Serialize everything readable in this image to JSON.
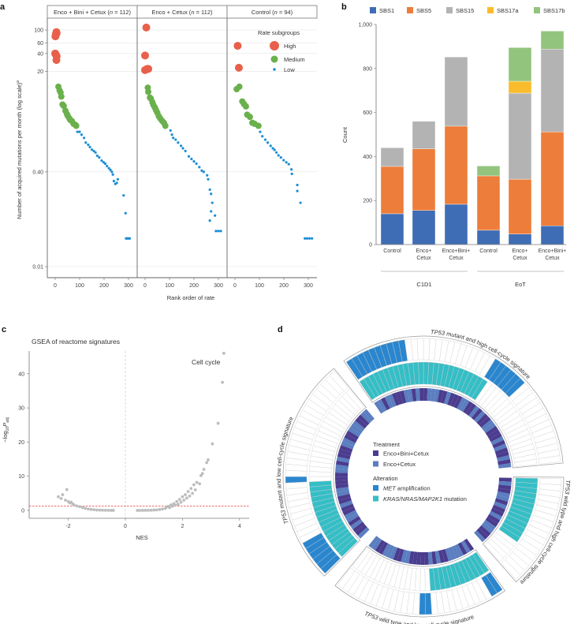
{
  "panel_letters": {
    "a": "a",
    "b": "b",
    "c": "c",
    "d": "d"
  },
  "chart_data": [
    {
      "panel": "a",
      "type": "scatter",
      "ylabel": "Number of acquired mutations per month (log scale)",
      "ylabel_sup": "a",
      "xlabel": "Rank order of rate",
      "yscale": "log",
      "yticks": [
        100,
        60,
        40,
        20,
        0.4,
        0.01
      ],
      "ytick_labels": [
        "100",
        "60",
        "40",
        "20",
        "0.40",
        "0.01"
      ],
      "xticks": [
        0,
        100,
        200,
        300
      ],
      "xtick_labels": [
        "0",
        "100",
        "200",
        "300"
      ],
      "legend": {
        "title": "Rate subgroups",
        "items": [
          "High",
          "Medium",
          "Low"
        ],
        "placement": "top-right"
      },
      "colors": {
        "High": "#E8604C",
        "Medium": "#6AB04C",
        "Low": "#1B8ED6"
      },
      "facets": [
        {
          "title": "Enco + Bini + Cetux (",
          "n_label": "n",
          "n_value": " = 112)",
          "High": [
            [
              1,
              78
            ],
            [
              3,
              85
            ],
            [
              5,
              92
            ],
            [
              6,
              88
            ],
            [
              0,
              40
            ],
            [
              3,
              38
            ],
            [
              6,
              36
            ],
            [
              5,
              31
            ]
          ],
          "Medium": [
            [
              13,
              11
            ],
            [
              18,
              9.5
            ],
            [
              22,
              8.8
            ],
            [
              25,
              7.5
            ],
            [
              30,
              5.5
            ],
            [
              35,
              5.2
            ],
            [
              42,
              4.3
            ],
            [
              48,
              3.8
            ],
            [
              52,
              3.5
            ],
            [
              58,
              3.2
            ],
            [
              62,
              3.0
            ],
            [
              68,
              2.9
            ],
            [
              75,
              2.6
            ],
            [
              82,
              2.5
            ],
            [
              86,
              2.4
            ]
          ],
          "Low": [
            [
              91,
              1.9
            ],
            [
              100,
              1.9
            ],
            [
              108,
              1.7
            ],
            [
              118,
              1.5
            ],
            [
              125,
              1.25
            ],
            [
              135,
              1.15
            ],
            [
              142,
              1.05
            ],
            [
              150,
              0.95
            ],
            [
              158,
              0.9
            ],
            [
              165,
              0.85
            ],
            [
              172,
              0.75
            ],
            [
              180,
              0.7
            ],
            [
              190,
              0.62
            ],
            [
              198,
              0.58
            ],
            [
              205,
              0.55
            ],
            [
              212,
              0.5
            ],
            [
              220,
              0.46
            ],
            [
              226,
              0.43
            ],
            [
              232,
              0.4
            ],
            [
              236,
              0.36
            ],
            [
              240,
              0.28
            ],
            [
              246,
              0.25
            ],
            [
              252,
              0.26
            ],
            [
              256,
              0.3
            ],
            [
              280,
              0.16
            ],
            [
              288,
              0.08
            ],
            [
              290,
              0.03
            ],
            [
              295,
              0.03
            ],
            [
              300,
              0.03
            ],
            [
              305,
              0.03
            ]
          ]
        },
        {
          "title": "Enco + Cetux (",
          "n_label": "n",
          "n_value": " = 112)",
          "High": [
            [
              5,
              110
            ],
            [
              0,
              37
            ],
            [
              0,
              21
            ],
            [
              8,
              22
            ],
            [
              13,
              22
            ]
          ],
          "Medium": [
            [
              11,
              10.6
            ],
            [
              13,
              9
            ],
            [
              20,
              7.2
            ],
            [
              24,
              6.9
            ],
            [
              30,
              6
            ],
            [
              34,
              5.4
            ],
            [
              40,
              4.9
            ],
            [
              45,
              4.4
            ],
            [
              50,
              4
            ],
            [
              56,
              3.5
            ],
            [
              62,
              3.2
            ],
            [
              70,
              2.9
            ],
            [
              77,
              2.7
            ],
            [
              83,
              2.4
            ]
          ],
          "Low": [
            [
              104,
              2.0
            ],
            [
              110,
              1.7
            ],
            [
              115,
              1.5
            ],
            [
              125,
              1.4
            ],
            [
              135,
              1.25
            ],
            [
              147,
              1.1
            ],
            [
              155,
              1.0
            ],
            [
              165,
              0.9
            ],
            [
              179,
              0.73
            ],
            [
              190,
              0.66
            ],
            [
              200,
              0.6
            ],
            [
              210,
              0.55
            ],
            [
              222,
              0.48
            ],
            [
              232,
              0.42
            ],
            [
              240,
              0.4
            ],
            [
              254,
              0.35
            ],
            [
              258,
              0.3
            ],
            [
              265,
              0.2
            ],
            [
              270,
              0.17
            ],
            [
              275,
              0.12
            ],
            [
              270,
              0.086
            ],
            [
              265,
              0.06
            ],
            [
              286,
              0.073
            ],
            [
              290,
              0.04
            ],
            [
              300,
              0.04
            ],
            [
              310,
              0.04
            ]
          ]
        },
        {
          "title": "Control (",
          "n_label": "n",
          "n_value": " = 94)",
          "High": [
            [
              11,
              54
            ],
            [
              16,
              23
            ]
          ],
          "Medium": [
            [
              7,
              10
            ],
            [
              18,
              11
            ],
            [
              30,
              6.2
            ],
            [
              37,
              5.6
            ],
            [
              45,
              5.1
            ],
            [
              50,
              3.7
            ],
            [
              61,
              3.4
            ],
            [
              71,
              2.7
            ],
            [
              80,
              2.6
            ],
            [
              96,
              2.4
            ]
          ],
          "Low": [
            [
              103,
              1.9
            ],
            [
              112,
              1.6
            ],
            [
              124,
              1.4
            ],
            [
              134,
              1.25
            ],
            [
              146,
              1.1
            ],
            [
              155,
              1.0
            ],
            [
              162,
              0.94
            ],
            [
              170,
              0.85
            ],
            [
              178,
              0.76
            ],
            [
              188,
              0.7
            ],
            [
              199,
              0.63
            ],
            [
              210,
              0.58
            ],
            [
              220,
              0.54
            ],
            [
              231,
              0.44
            ],
            [
              233,
              0.37
            ],
            [
              255,
              0.24
            ],
            [
              255,
              0.19
            ],
            [
              268,
              0.12
            ],
            [
              286,
              0.03
            ],
            [
              295,
              0.03
            ],
            [
              305,
              0.03
            ],
            [
              315,
              0.03
            ]
          ]
        }
      ]
    },
    {
      "panel": "b",
      "type": "bar",
      "stacked": true,
      "ylabel": "Count",
      "ylim": [
        0,
        1000
      ],
      "yticks": [
        0,
        200,
        400,
        600,
        800,
        1000
      ],
      "ytick_labels": [
        "0",
        "200",
        "400",
        "600",
        "800",
        "1,000"
      ],
      "categories": [
        [
          "Control"
        ],
        [
          "Enco+",
          "Cetux"
        ],
        [
          "Enco+Bini+",
          "Cetux"
        ],
        [
          "Control"
        ],
        [
          "Enco+",
          "Cetux"
        ],
        [
          "Enco+Bini+",
          "Cetux"
        ]
      ],
      "groups": [
        "C1D1",
        "EoT"
      ],
      "legend_placement": "top",
      "series": [
        {
          "name": "SBS1",
          "color": "#3F6DB5",
          "values": [
            140,
            155,
            183,
            65,
            48,
            85
          ]
        },
        {
          "name": "SBS5",
          "color": "#ED7D3A",
          "values": [
            215,
            280,
            355,
            247,
            249,
            427
          ]
        },
        {
          "name": "SBS15",
          "color": "#B3B3B3",
          "values": [
            85,
            125,
            314,
            0,
            391,
            376
          ]
        },
        {
          "name": "SBS17a",
          "color": "#F9BC2C",
          "values": [
            0,
            0,
            0,
            0,
            54,
            0
          ]
        },
        {
          "name": "SBS17b",
          "color": "#93C47D",
          "values": [
            0,
            0,
            0,
            45,
            153,
            82
          ]
        }
      ]
    },
    {
      "panel": "c",
      "type": "scatter",
      "title": "GSEA of reactome signatures",
      "xlabel": "NES",
      "ylabel_pre": "−log",
      "ylabel_sub": "10",
      "ylabel_P": "P",
      "ylabel_psub": "adj",
      "xlim": [
        -3.35,
        4.2
      ],
      "ylim": [
        -2.3,
        47
      ],
      "xticks": [
        -2,
        0,
        2,
        4
      ],
      "xtick_labels": [
        "-2",
        "0",
        "2",
        "4"
      ],
      "yticks": [
        0,
        10,
        20,
        30,
        40
      ],
      "ytick_labels": [
        "0",
        "10",
        "20",
        "30",
        "40"
      ],
      "threshold_y": 1.3,
      "annotation": "Cell cycle",
      "point_color": "#BDBDBD",
      "threshold_color": "#E23B3B",
      "points": [
        [
          -2.35,
          4
        ],
        [
          -2.25,
          3.5
        ],
        [
          -2.2,
          4.6
        ],
        [
          -2.05,
          6.1
        ],
        [
          -2.1,
          3
        ],
        [
          -2.0,
          2.6
        ],
        [
          -1.95,
          2.2
        ],
        [
          -1.9,
          2.4
        ],
        [
          -1.85,
          1.9
        ],
        [
          -1.8,
          1.6
        ],
        [
          -1.7,
          1.3
        ],
        [
          -1.6,
          1.1
        ],
        [
          -1.5,
          0.8
        ],
        [
          -1.4,
          0.6
        ],
        [
          -1.3,
          0.4
        ],
        [
          -1.2,
          0.3
        ],
        [
          -1.1,
          0.2
        ],
        [
          -1.0,
          0.12
        ],
        [
          -0.9,
          0.08
        ],
        [
          -0.8,
          0.05
        ],
        [
          -0.7,
          0.03
        ],
        [
          -0.6,
          0.02
        ],
        [
          -0.5,
          0.01
        ],
        [
          -0.42,
          0.01
        ],
        [
          0.42,
          0
        ],
        [
          0.5,
          0
        ],
        [
          0.6,
          0.01
        ],
        [
          0.7,
          0.02
        ],
        [
          0.8,
          0.04
        ],
        [
          0.9,
          0.06
        ],
        [
          1.0,
          0.1
        ],
        [
          1.1,
          0.15
        ],
        [
          1.2,
          0.25
        ],
        [
          1.3,
          0.4
        ],
        [
          1.4,
          0.6
        ],
        [
          1.45,
          1.0
        ],
        [
          1.5,
          1.2
        ],
        [
          1.55,
          0.8
        ],
        [
          1.6,
          1.6
        ],
        [
          1.65,
          1.2
        ],
        [
          1.7,
          2.0
        ],
        [
          1.75,
          1.5
        ],
        [
          1.8,
          2.6
        ],
        [
          1.85,
          1.8
        ],
        [
          1.9,
          3.2
        ],
        [
          1.95,
          2.4
        ],
        [
          2.0,
          4.0
        ],
        [
          2.05,
          3.0
        ],
        [
          2.1,
          4.6
        ],
        [
          2.15,
          3.6
        ],
        [
          2.2,
          5.5
        ],
        [
          2.25,
          4.2
        ],
        [
          2.3,
          6.4
        ],
        [
          2.35,
          5.0
        ],
        [
          2.4,
          7.5
        ],
        [
          2.45,
          6.0
        ],
        [
          2.5,
          8.2
        ],
        [
          2.6,
          7.8
        ],
        [
          2.65,
          10.2
        ],
        [
          2.7,
          10.8
        ],
        [
          2.75,
          12
        ],
        [
          2.85,
          14
        ],
        [
          2.9,
          14.8
        ],
        [
          3.05,
          19.5
        ],
        [
          3.25,
          25.5
        ],
        [
          3.4,
          37.5
        ],
        [
          3.45,
          46
        ]
      ]
    },
    {
      "panel": "d",
      "type": "circos",
      "legend": {
        "treatment_title": "Treatment",
        "treatment_items": [
          {
            "code": "A",
            "label": "Enco+Bini+Cetux"
          },
          {
            "code": "B",
            "label": "Enco+Cetux"
          }
        ],
        "alteration_title": "Alteration",
        "met_gene": "MET",
        "met_rest": " amplification",
        "mut_gene": "KRAS/NRAS/MAP2K1",
        "mut_rest": " mutation"
      },
      "colors": {
        "A": "#4B3C8E",
        "B": "#5B7EC0",
        "met": "#2A86CE",
        "mutation": "#35BEC6"
      },
      "sectors": [
        {
          "gene": "TP53",
          "label": " mutant and high cell-cycle signature",
          "treatment": "BBABBAAABBABAABBBAABAAABBAABABAABBAAABABAABAB",
          "mutation_cells": [
            [
              0,
              25
            ]
          ],
          "met_cells": [
            [
              0,
              9
            ],
            [
              25,
              30
            ]
          ]
        },
        {
          "gene": "TP53",
          "label": " wild type and high cell-cycle signature",
          "treatment": "ABAABBABAABAABBAAB",
          "mutation_cells": [
            [
              0,
              12
            ]
          ],
          "met_cells": []
        },
        {
          "gene": "TP53",
          "label": " wild type and low cell-cycle signature",
          "treatment": "ABABBBBAABABAAAAABBAABBBAABB",
          "mutation_cells": [
            [
              0,
              11
            ]
          ],
          "met_cells": [
            [
              0,
              1
            ],
            [
              12,
              13
            ]
          ]
        },
        {
          "gene": "TP53",
          "label": " mutant and low cell-cycle signature",
          "treatment": "BAABABBAABAABBAAAABBABAAABBAABBBAABB",
          "mutation_cells": [
            [
              0,
              15
            ]
          ],
          "met_cells": [
            [
              0,
              5
            ],
            [
              16,
              16
            ]
          ]
        }
      ]
    }
  ]
}
